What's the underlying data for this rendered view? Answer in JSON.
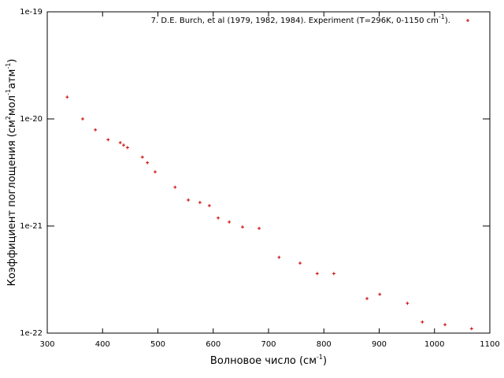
{
  "chart_data": {
    "type": "scatter",
    "xlabel": [
      "Волновое число (см",
      "-1",
      ")"
    ],
    "ylabel": [
      "Коэффициент поглощения (см",
      "2",
      "мол",
      "-1",
      "атм",
      "-1",
      ")"
    ],
    "log_y": true,
    "legend": "top-right",
    "xlim": [
      300,
      1100
    ],
    "xticks": [
      300,
      400,
      500,
      600,
      700,
      800,
      900,
      1000,
      1100
    ],
    "ylim": [
      1e-22,
      1e-19
    ],
    "yticks": [
      {
        "value": 1e-22,
        "label": "1e-22"
      },
      {
        "value": 1e-21,
        "label": "1e-21"
      },
      {
        "value": 1e-20,
        "label": "1e-20"
      },
      {
        "value": 1e-19,
        "label": "1e-19"
      }
    ],
    "series": [
      {
        "name": [
          "7. D.E. Burch, et al (1979, 1982, 1984). Experiment (T=296K, 0-1150 cm",
          "-1",
          ")."
        ],
        "color": "#cc0000",
        "x": [
          336,
          364,
          387,
          410,
          432,
          438,
          445,
          472,
          481,
          495,
          531,
          555,
          576,
          593,
          609,
          629,
          653,
          683,
          719,
          757,
          788,
          818,
          878,
          901,
          951,
          978,
          1019,
          1067
        ],
        "values": [
          1.6e-20,
          1e-20,
          7.9e-21,
          6.4e-21,
          6e-21,
          5.7e-21,
          5.4e-21,
          4.4e-21,
          3.9e-21,
          3.2e-21,
          2.3e-21,
          1.75e-21,
          1.66e-21,
          1.55e-21,
          1.19e-21,
          1.09e-21,
          9.8e-22,
          9.5e-22,
          5.1e-22,
          4.5e-22,
          3.6e-22,
          3.6e-22,
          2.1e-22,
          2.3e-22,
          1.9e-22,
          1.27e-22,
          1.2e-22,
          1.1e-22
        ]
      }
    ]
  }
}
